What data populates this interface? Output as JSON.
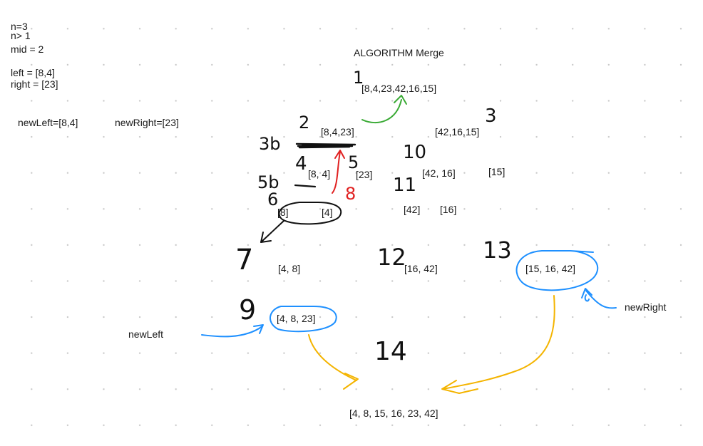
{
  "notes": {
    "n": "n=3",
    "n_cond": "n> 1",
    "mid": "mid = 2",
    "left": "left = [8,4]",
    "right": "right = [23]",
    "new_left": "newLeft=[8,4]",
    "new_right": "newRight=[23]"
  },
  "title": "ALGORITHM Merge",
  "arrays": {
    "a1": "[8,4,23,42,16,15]",
    "a2": "[8,4,23]",
    "a3": "[42,16,15]",
    "a4": "[8, 4]",
    "a5": "[23]",
    "a10": "[42, 16]",
    "a15": "[15]",
    "a6_left": "[8]",
    "a6_right": "[4]",
    "a11_left": "[42]",
    "a11_right": "[16]",
    "a7": "[4, 8]",
    "a12": "[16, 42]",
    "a13": "[15, 16, 42]",
    "a9": "[4, 8, 23]",
    "result": "[4, 8, 15, 16, 23, 42]"
  },
  "labels": {
    "new_left": "newLeft",
    "new_right": "newRight"
  },
  "step_numbers": {
    "s1": "1",
    "s2": "2",
    "s3": "3",
    "s3b": "3b",
    "s4": "4",
    "s5": "5",
    "s5b": "5b",
    "s6": "6",
    "s7": "7",
    "s8": "8",
    "s9": "9",
    "s10": "10",
    "s11": "11",
    "s12": "12",
    "s13": "13",
    "s14": "14"
  },
  "colors": {
    "black_ink": "#111111",
    "green_arrow": "#3aaa35",
    "red_arrow": "#e02020",
    "blue_ink": "#1e90ff",
    "yellow_arrow": "#f4b400"
  }
}
